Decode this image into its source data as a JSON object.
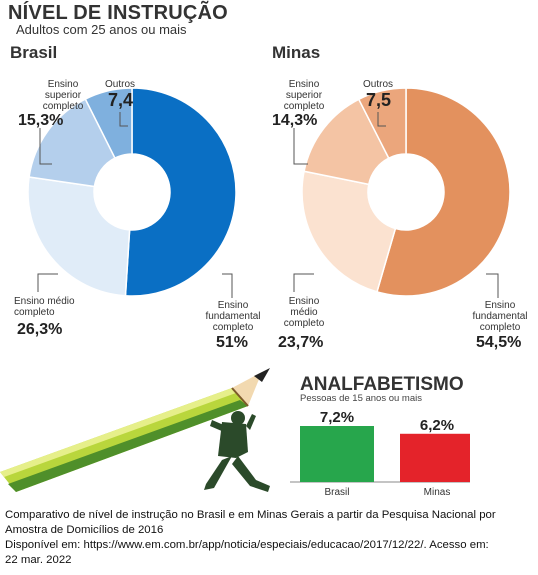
{
  "title": "NÍVEL DE INSTRUÇÃO",
  "subtitle": "Adultos com 25 anos ou mais",
  "chart_data": [
    {
      "type": "pie",
      "title": "Brasil",
      "categories": [
        "Ensino fundamental completo",
        "Ensino médio completo",
        "Ensino superior completo",
        "Outros"
      ],
      "labels": {
        "fundamental": "Ensino fundamental completo",
        "medio": "Ensino médio completo",
        "superior": "Ensino superior completo",
        "outros": "Outros"
      },
      "values": [
        51,
        26.3,
        15.3,
        7.4
      ],
      "value_labels": [
        "51%",
        "26,3%",
        "15,3%",
        "7,4"
      ],
      "colors": [
        "#0a6fc4",
        "#e0ecf8",
        "#b4cfec",
        "#7fb0de"
      ]
    },
    {
      "type": "pie",
      "title": "Minas",
      "categories": [
        "Ensino fundamental completo",
        "Ensino médio completo",
        "Ensino superior completo",
        "Outros"
      ],
      "labels": {
        "fundamental": "Ensino fundamental completo",
        "medio": "Ensino médio completo",
        "superior": "Ensino superior completo",
        "outros": "Outros"
      },
      "values": [
        54.5,
        23.7,
        14.3,
        7.5
      ],
      "value_labels": [
        "54,5%",
        "23,7%",
        "14,3%",
        "7,5"
      ],
      "colors": [
        "#e3915e",
        "#fbe2d0",
        "#f4c4a4",
        "#eba67c"
      ]
    },
    {
      "type": "bar",
      "title": "ANALFABETISMO",
      "subtitle": "Pessoas de 15 anos ou mais",
      "categories": [
        "Brasil",
        "Minas"
      ],
      "values": [
        7.2,
        6.2
      ],
      "value_labels": [
        "7,2%",
        "6,2%"
      ],
      "colors": [
        "#27a64c",
        "#e4232a"
      ]
    }
  ],
  "caption": {
    "line1": "Comparativo de nível de instrução no Brasil e em Minas Gerais a partir da Pesquisa Nacional por",
    "line2": "Amostra de Domicílios de 2016",
    "line3": "Disponível em: https://www.em.com.br/app/noticia/especiais/educacao/2017/12/22/. Acesso em:",
    "line4": "22 mar. 2022"
  }
}
